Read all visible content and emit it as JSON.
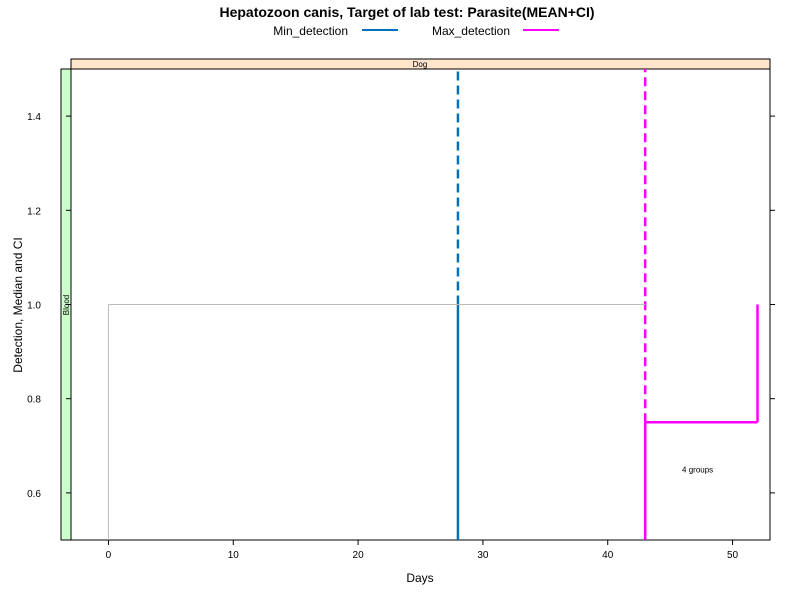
{
  "chart_data": {
    "type": "line",
    "title": "Hepatozoon canis, Target of lab test: Parasite(MEAN+CI)",
    "xlabel": "Days",
    "ylabel": "Detection, Median and CI",
    "xlim": [
      -3,
      53
    ],
    "ylim": [
      0.5,
      1.5
    ],
    "x_ticks": [
      0,
      10,
      20,
      30,
      40,
      50
    ],
    "y_ticks": [
      0.6,
      0.8,
      1.0,
      1.2,
      1.4
    ],
    "x_tick_labels": [
      "0",
      "10",
      "20",
      "30",
      "40",
      "50"
    ],
    "y_tick_labels": [
      "0.6",
      "0.8",
      "1.0",
      "1.2",
      "1.4"
    ],
    "panel_strip_top": "Dog",
    "panel_strip_left": "Blood",
    "grid": false,
    "legend": {
      "placement": "top",
      "entries": [
        {
          "name": "Min_detection",
          "color": "#0072BD"
        },
        {
          "name": "Max_detection",
          "color": "#FF00FF"
        }
      ]
    },
    "series": [
      {
        "name": "Min_detection",
        "color": "#0072BD",
        "median_segments": [
          {
            "x": [
              28,
              28
            ],
            "y": [
              0.5,
              1.0
            ]
          }
        ],
        "ci_segments": [
          {
            "x": [
              28,
              28
            ],
            "y": [
              1.0,
              1.5
            ]
          }
        ]
      },
      {
        "name": "Max_detection",
        "color": "#FF00FF",
        "median_segments": [
          {
            "x": [
              43,
              43
            ],
            "y": [
              0.5,
              0.75
            ]
          },
          {
            "x": [
              43,
              52
            ],
            "y": [
              0.75,
              0.75
            ]
          },
          {
            "x": [
              52,
              52
            ],
            "y": [
              0.75,
              1.0
            ]
          }
        ],
        "ci_segments": [
          {
            "x": [
              43,
              43
            ],
            "y": [
              0.75,
              1.5
            ]
          }
        ]
      },
      {
        "name": "",
        "color": "#BBBBBB",
        "median_segments": [
          {
            "x": [
              0,
              0
            ],
            "y": [
              0.5,
              1.0
            ]
          },
          {
            "x": [
              0,
              43
            ],
            "y": [
              1.0,
              1.0
            ]
          }
        ],
        "ci_segments": []
      }
    ],
    "annotations": [
      {
        "text": "4 groups",
        "x": 47.2,
        "y": 0.65
      }
    ],
    "colors": {
      "strip_top_fill": "#FFE5CC",
      "strip_left_fill": "#CCFFCC",
      "reference_line": "#BBBBBB"
    }
  }
}
